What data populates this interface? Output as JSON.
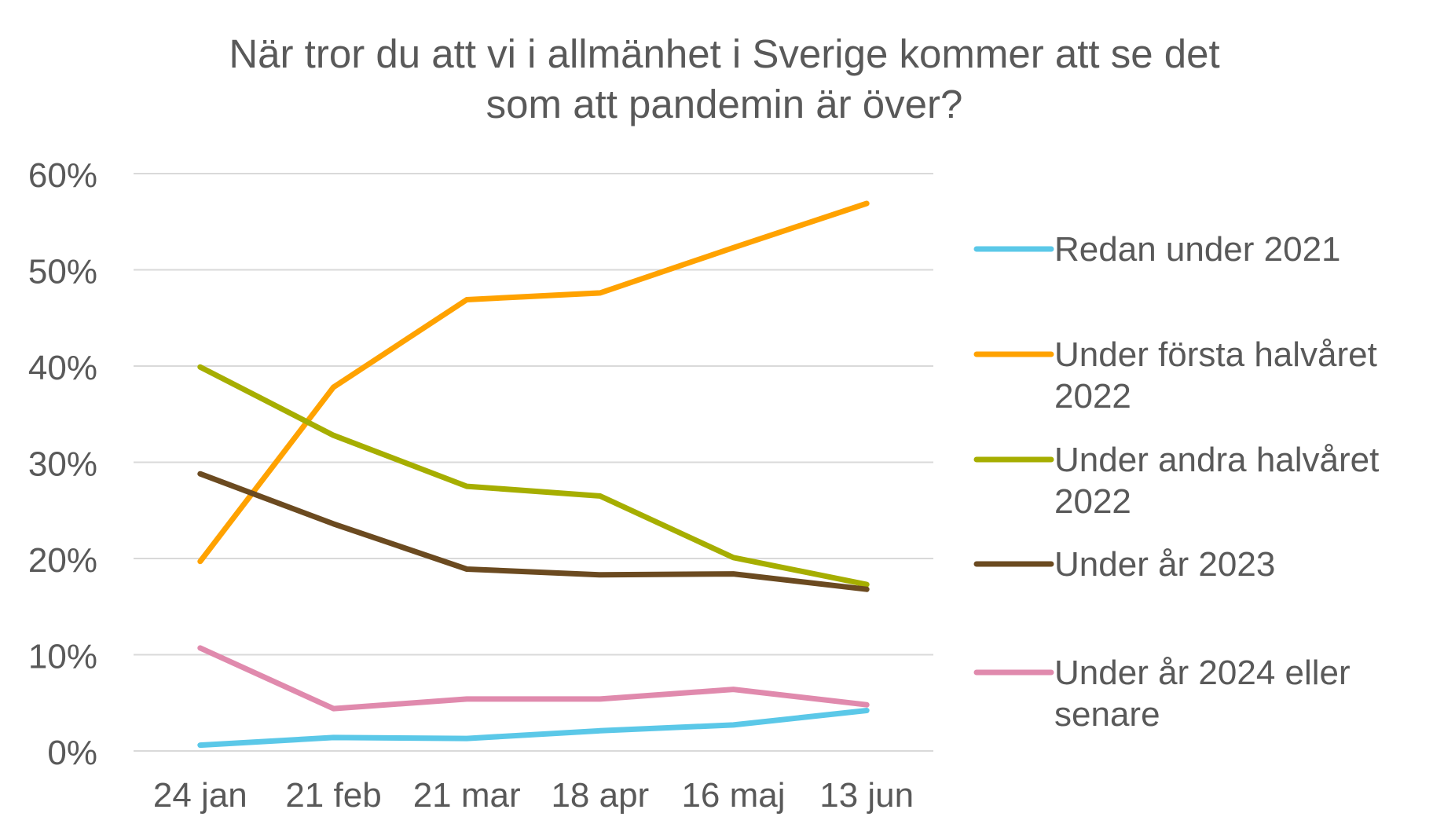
{
  "chart_data": {
    "type": "line",
    "title_lines": [
      "När tror du att vi i allmänhet i Sverige kommer att se det",
      "som att pandemin är över?"
    ],
    "categories": [
      "24 jan",
      "21 feb",
      "21 mar",
      "18 apr",
      "16 maj",
      "13 jun"
    ],
    "y_ticks": [
      "0%",
      "10%",
      "20%",
      "30%",
      "40%",
      "50%",
      "60%"
    ],
    "ylim": [
      0,
      60
    ],
    "y_unit": "%",
    "grid": true,
    "legend_position": "right",
    "series": [
      {
        "name": "Redan under 2021",
        "name_lines": [
          "Redan under 2021"
        ],
        "color": "#5bc8e8",
        "values": [
          0.6,
          1.4,
          1.3,
          2.1,
          2.7,
          4.2
        ]
      },
      {
        "name": "Under första halvåret 2022",
        "name_lines": [
          "Under första halvåret",
          "2022"
        ],
        "color": "#ffa200",
        "values": [
          19.7,
          37.8,
          46.9,
          47.6,
          52.3,
          56.9
        ]
      },
      {
        "name": "Under andra halvåret 2022",
        "name_lines": [
          "Under andra halvåret",
          "2022"
        ],
        "color": "#a6ae00",
        "values": [
          39.9,
          32.8,
          27.5,
          26.5,
          20.1,
          17.3
        ]
      },
      {
        "name": "Under år 2023",
        "name_lines": [
          "Under år 2023"
        ],
        "color": "#6b4a20",
        "values": [
          28.8,
          23.6,
          18.9,
          18.3,
          18.4,
          16.8
        ]
      },
      {
        "name": "Under år 2024 eller senare",
        "name_lines": [
          "Under år 2024 eller",
          "senare"
        ],
        "color": "#e08aad",
        "values": [
          10.7,
          4.4,
          5.4,
          5.4,
          6.4,
          4.8
        ]
      }
    ]
  }
}
